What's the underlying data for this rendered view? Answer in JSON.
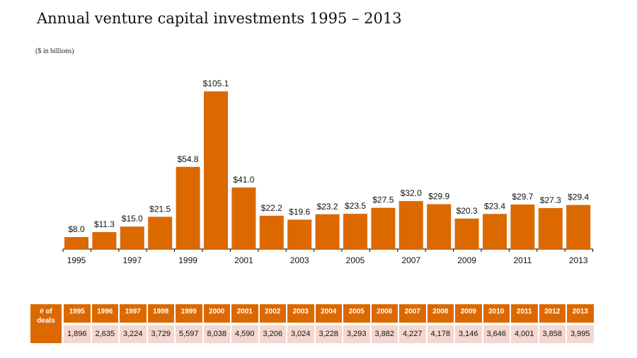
{
  "chart_data": {
    "type": "bar",
    "title": "Annual venture capital investments 1995 – 2013",
    "unit_note": "($ in billions)",
    "categories": [
      "1995",
      "1996",
      "1997",
      "1998",
      "1999",
      "2000",
      "2001",
      "2002",
      "2003",
      "2004",
      "2005",
      "2006",
      "2007",
      "2008",
      "2009",
      "2010",
      "2011",
      "2012",
      "2013"
    ],
    "values": [
      8.0,
      11.3,
      15.0,
      21.5,
      54.8,
      105.1,
      41.0,
      22.2,
      19.6,
      23.2,
      23.5,
      27.5,
      32.0,
      29.9,
      20.3,
      23.4,
      29.7,
      27.3,
      29.4
    ],
    "data_labels": [
      "$8.0",
      "$11.3",
      "$15.0",
      "$21.5",
      "$54.8",
      "$105.1",
      "$41.0",
      "$22.2",
      "$19.6",
      "$23.2",
      "$23.5",
      "$27.5",
      "$32.0",
      "$29.9",
      "$20.3",
      "$23.4",
      "$29.7",
      "$27.3",
      "$29.4"
    ],
    "x_tick_labels": [
      "1995",
      "1997",
      "1999",
      "2001",
      "2003",
      "2005",
      "2007",
      "2009",
      "2011",
      "2013"
    ],
    "bar_color": "#dc6900",
    "grid": false
  },
  "deals_table": {
    "row_label": "# of deals",
    "years": [
      "1995",
      "1996",
      "1997",
      "1998",
      "1999",
      "2000",
      "2001",
      "2002",
      "2003",
      "2004",
      "2005",
      "2006",
      "2007",
      "2008",
      "2009",
      "2010",
      "2011",
      "2012",
      "2013"
    ],
    "deals": [
      "1,896",
      "2,635",
      "3,224",
      "3,729",
      "5,597",
      "8,038",
      "4,590",
      "3,206",
      "3,024",
      "3,228",
      "3,293",
      "3,882",
      "4,227",
      "4,178",
      "3,146",
      "3,646",
      "4,001",
      "3,858",
      "3,995"
    ],
    "header_color": "#dc6900",
    "cell_color": "#f4d7cf"
  }
}
